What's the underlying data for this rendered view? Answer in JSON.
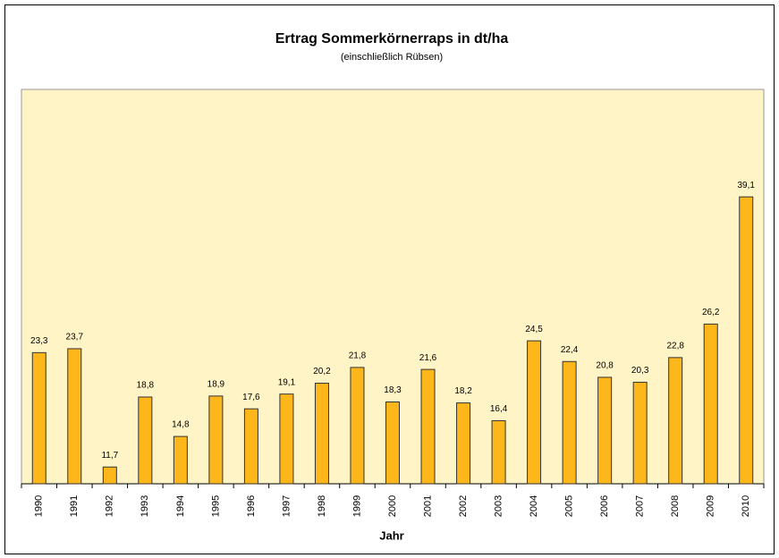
{
  "chart_data": {
    "type": "bar",
    "title": "Ertrag Sommerkörnerraps in dt/ha",
    "subtitle": "(einschließlich Rübsen)",
    "x_label": "Jahr",
    "categories": [
      "1990",
      "1991",
      "1992",
      "1993",
      "1994",
      "1995",
      "1996",
      "1997",
      "1998",
      "1999",
      "2000",
      "2001",
      "2002",
      "2003",
      "2004",
      "2005",
      "2006",
      "2007",
      "2008",
      "2009",
      "2010"
    ],
    "values": [
      23.3,
      23.7,
      11.7,
      18.8,
      14.8,
      18.9,
      17.6,
      19.1,
      20.2,
      21.8,
      18.3,
      21.6,
      18.2,
      16.4,
      24.5,
      22.4,
      20.8,
      20.3,
      22.8,
      26.2,
      39.1
    ],
    "value_labels": [
      "23,3",
      "23,7",
      "11,7",
      "18,8",
      "14,8",
      "18,9",
      "17,6",
      "19,1",
      "20,2",
      "21,8",
      "18,3",
      "21,6",
      "18,2",
      "16,4",
      "24,5",
      "22,4",
      "20,8",
      "20,3",
      "22,8",
      "26,2",
      "39,1"
    ],
    "color": "#fdb71a",
    "ylim": [
      10,
      50
    ]
  }
}
